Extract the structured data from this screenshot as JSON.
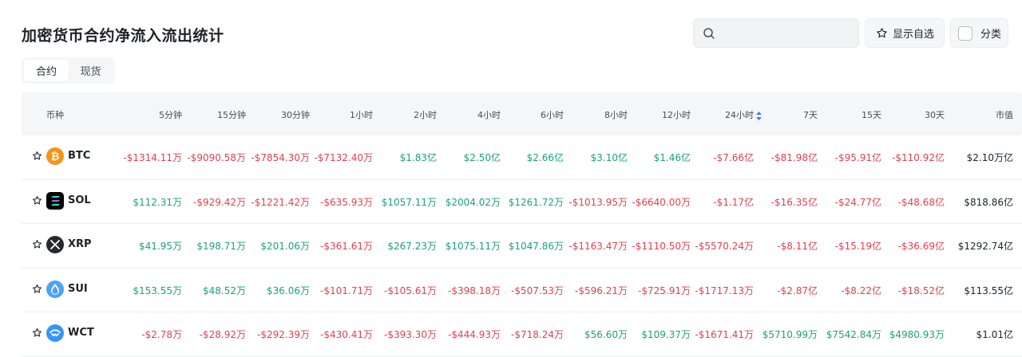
{
  "page": {
    "title": "加密货币合约净流入流出统计"
  },
  "search": {
    "placeholder": ""
  },
  "buttons": {
    "favorites_label": "显示自选",
    "category_label": "分类"
  },
  "tabs": [
    {
      "label": "合约",
      "active": true
    },
    {
      "label": "现货",
      "active": false
    }
  ],
  "table": {
    "headers": [
      "币种",
      "5分钟",
      "15分钟",
      "30分钟",
      "1小时",
      "2小时",
      "4小时",
      "6小时",
      "8小时",
      "12小时",
      "24小时",
      "7天",
      "15天",
      "30天",
      "市值"
    ],
    "sorted_column": "24小时",
    "rows": [
      {
        "symbol": "BTC",
        "icon": "bitcoin-icon",
        "values": [
          "-$1314.11万",
          "-$9090.58万",
          "-$7854.30万",
          "-$7132.40万",
          "$1.83亿",
          "$2.50亿",
          "$2.66亿",
          "$3.10亿",
          "$1.46亿",
          "-$7.66亿",
          "-$81.98亿",
          "-$95.91亿",
          "-$110.92亿"
        ],
        "market_cap": "$2.10万亿"
      },
      {
        "symbol": "SOL",
        "icon": "solana-icon",
        "values": [
          "$112.31万",
          "-$929.42万",
          "-$1221.42万",
          "-$635.93万",
          "$1057.11万",
          "$2004.02万",
          "$1261.72万",
          "-$1013.95万",
          "-$6640.00万",
          "-$1.17亿",
          "-$16.35亿",
          "-$24.77亿",
          "-$48.68亿"
        ],
        "market_cap": "$818.86亿"
      },
      {
        "symbol": "XRP",
        "icon": "xrp-icon",
        "values": [
          "$41.95万",
          "$198.71万",
          "$201.06万",
          "-$361.61万",
          "$267.23万",
          "$1075.11万",
          "$1047.86万",
          "-$1163.47万",
          "-$1110.50万",
          "-$5570.24万",
          "-$8.11亿",
          "-$15.19亿",
          "-$36.69亿"
        ],
        "market_cap": "$1292.74亿"
      },
      {
        "symbol": "SUI",
        "icon": "sui-icon",
        "values": [
          "$153.55万",
          "$48.52万",
          "$36.06万",
          "-$101.71万",
          "-$105.61万",
          "-$398.18万",
          "-$507.53万",
          "-$596.21万",
          "-$725.91万",
          "-$1717.13万",
          "-$2.87亿",
          "-$8.22亿",
          "-$18.52亿"
        ],
        "market_cap": "$113.55亿"
      },
      {
        "symbol": "WCT",
        "icon": "walletconnect-icon",
        "values": [
          "-$2.78万",
          "-$28.92万",
          "-$292.39万",
          "-$430.41万",
          "-$393.30万",
          "-$444.93万",
          "-$718.24万",
          "$56.60万",
          "$109.37万",
          "-$1671.41万",
          "$5710.99万",
          "$7542.84万",
          "$4980.93万"
        ],
        "market_cap": "$1.01亿"
      }
    ]
  },
  "colors": {
    "negative": "#e2404f",
    "positive": "#1ba27a",
    "btc": "#f7931a",
    "sort_active": "#3d7bf7"
  }
}
